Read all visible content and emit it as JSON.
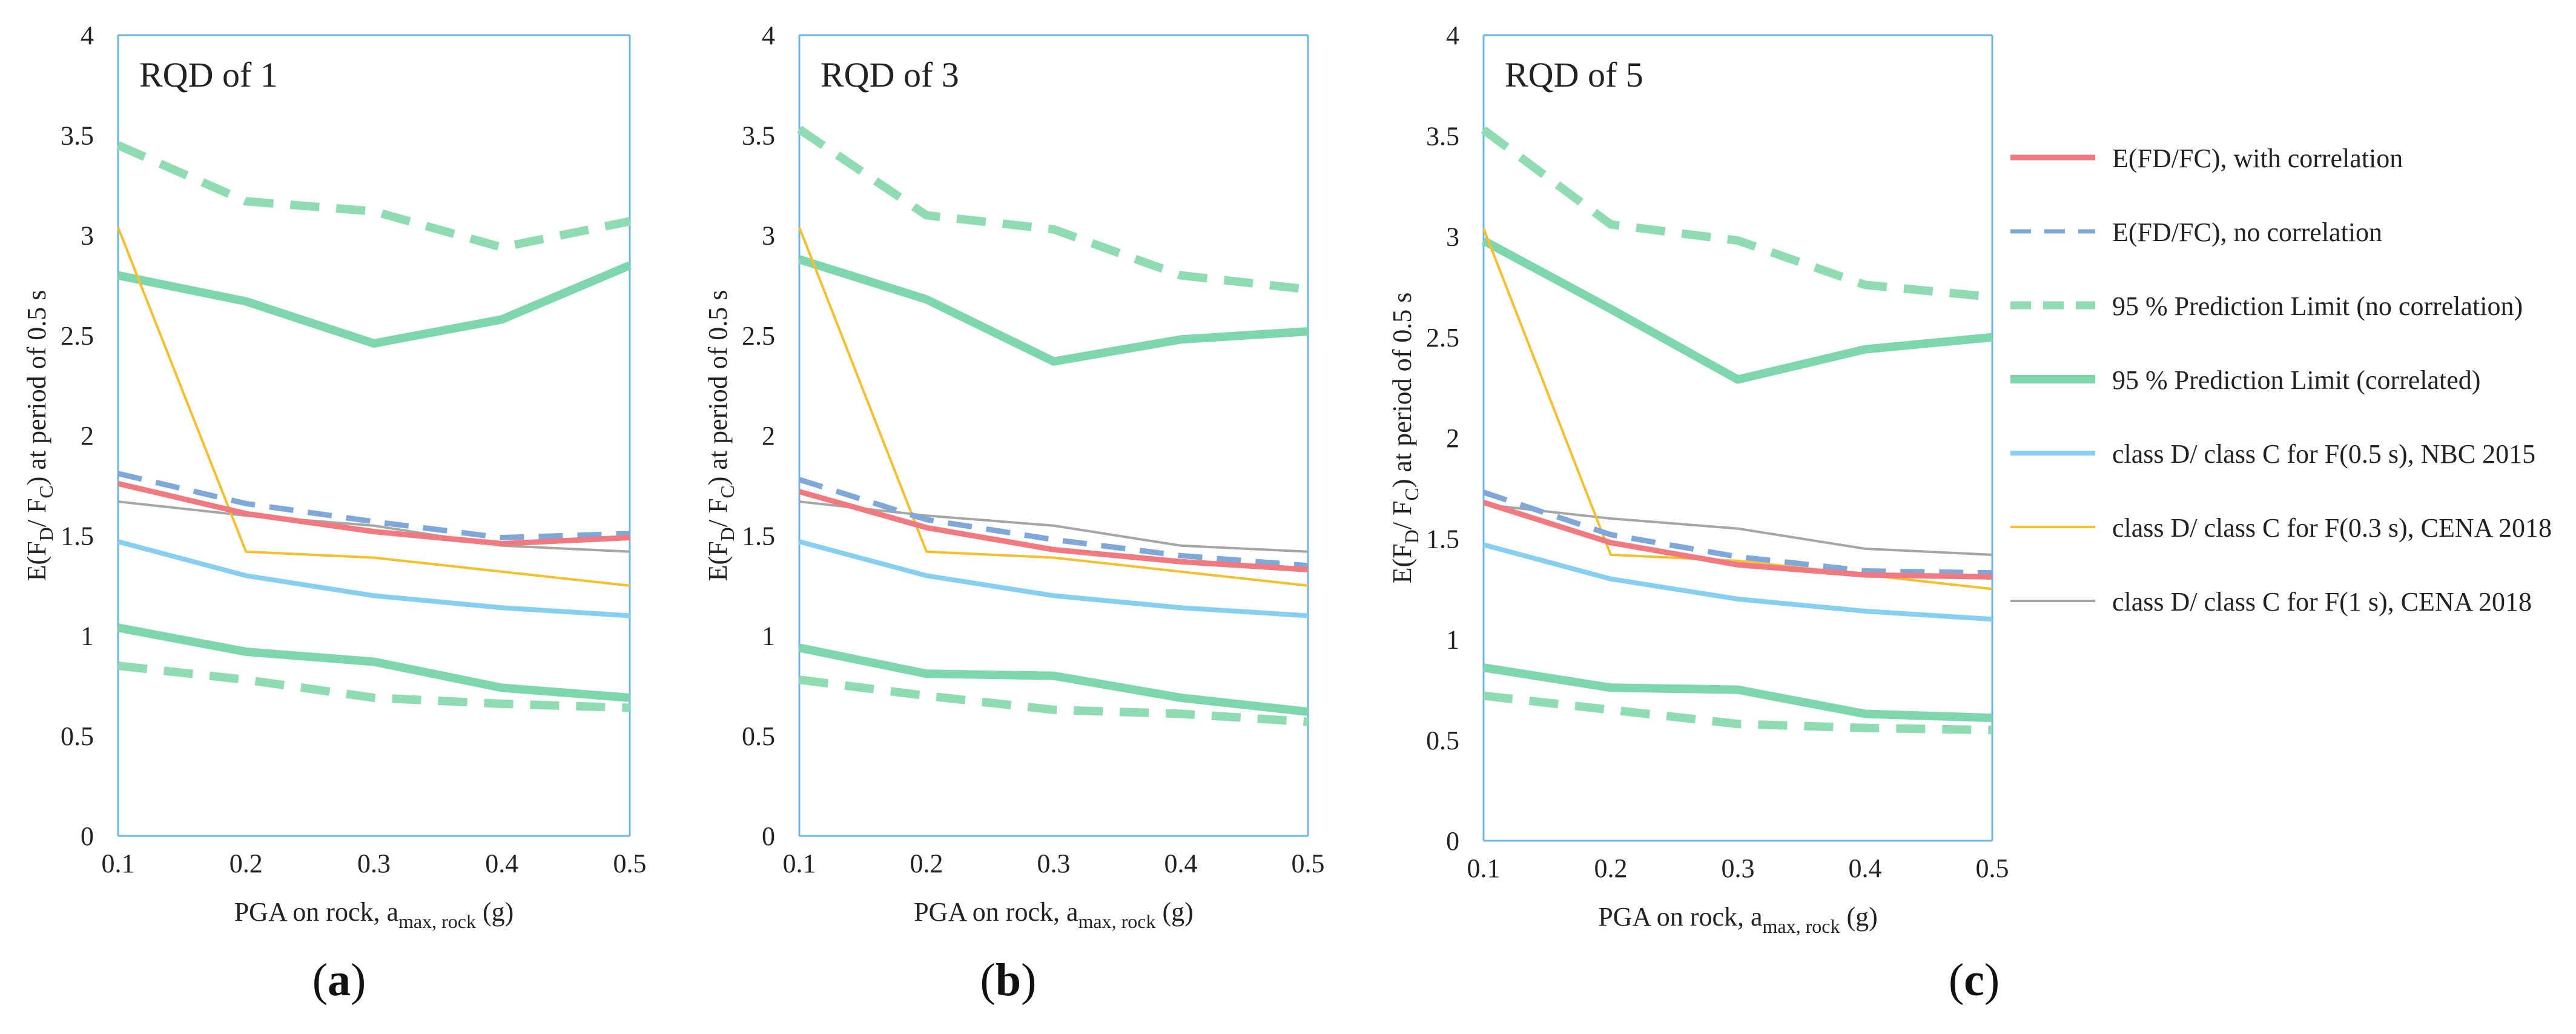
{
  "colors": {
    "e_corr": "#f07a80",
    "e_nocorr": "#7fa8d8",
    "pl_nocorr": "#8fdcb3",
    "pl_corr": "#7ed6ad",
    "nbc": "#86cff0",
    "cena03": "#f5bf2e",
    "cena1": "#a6a6a6",
    "axis": "#6fb6e0"
  },
  "legend": [
    {
      "key": "e_corr",
      "label": "E(FD/FC), with correlation"
    },
    {
      "key": "e_nocorr",
      "label": "E(FD/FC), no correlation"
    },
    {
      "key": "pl_nocorr",
      "label": "95 % Prediction Limit (no correlation)"
    },
    {
      "key": "pl_corr",
      "label": "95 % Prediction Limit (correlated)"
    },
    {
      "key": "nbc",
      "label": "class D/ class C for F(0.5 s), NBC 2015"
    },
    {
      "key": "cena03",
      "label": "class D/ class C for F(0.3 s), CENA 2018"
    },
    {
      "key": "cena1",
      "label": "class D/ class C for F(1 s), CENA 2018"
    }
  ],
  "panels": [
    {
      "caption_open": "(",
      "caption_letter": "a",
      "caption_close": ")"
    },
    {
      "caption_open": "(",
      "caption_letter": "b",
      "caption_close": ")"
    },
    {
      "caption_open": "(",
      "caption_letter": "c",
      "caption_close": ")"
    }
  ],
  "chart_data": [
    {
      "type": "line",
      "title": "RQD of 1",
      "xlabel": "PGA on rock, a",
      "xlabel_sub": "max, rock",
      "xlabel_unit": " (g)",
      "ylabel": "E(F",
      "ylabel_sub1": "D",
      "ylabel_mid": "/ F",
      "ylabel_sub2": "C",
      "ylabel_end": ") at period of 0.5 s",
      "x": [
        0.1,
        0.2,
        0.3,
        0.4,
        0.5
      ],
      "xticks": [
        "0.1",
        "0.2",
        "0.3",
        "0.4",
        "0.5"
      ],
      "yticks": [
        "0",
        "0.5",
        "1",
        "1.5",
        "2",
        "2.5",
        "3",
        "3.5",
        "4"
      ],
      "xlim": [
        0.1,
        0.5
      ],
      "ylim": [
        0,
        4
      ],
      "series": [
        {
          "key": "e_corr",
          "name": "E(FD/FC), with correlation",
          "values": [
            1.76,
            1.61,
            1.52,
            1.46,
            1.49
          ]
        },
        {
          "key": "e_nocorr",
          "name": "E(FD/FC), no correlation",
          "values": [
            1.81,
            1.66,
            1.57,
            1.49,
            1.51
          ]
        },
        {
          "key": "pl_nocorr",
          "name": "95 % Prediction Limit (no correlation) upper",
          "values": [
            3.45,
            3.17,
            3.12,
            2.94,
            3.07
          ]
        },
        {
          "key": "pl_nocorr",
          "name": "95 % Prediction Limit (no correlation) lower",
          "values": [
            0.85,
            0.78,
            0.69,
            0.66,
            0.64
          ]
        },
        {
          "key": "pl_corr",
          "name": "95 % Prediction Limit (correlated) upper",
          "values": [
            2.8,
            2.67,
            2.46,
            2.58,
            2.85
          ]
        },
        {
          "key": "pl_corr",
          "name": "95 % Prediction Limit (correlated) lower",
          "values": [
            1.04,
            0.92,
            0.87,
            0.74,
            0.69
          ]
        },
        {
          "key": "nbc",
          "name": "class D/ class C for F(0.5 s), NBC 2015",
          "values": [
            1.47,
            1.3,
            1.2,
            1.14,
            1.1
          ]
        },
        {
          "key": "cena03",
          "name": "class D/ class C for F(0.3 s), CENA 2018",
          "values": [
            3.04,
            1.42,
            1.39,
            1.32,
            1.25
          ]
        },
        {
          "key": "cena1",
          "name": "class D/ class C for F(1 s), CENA 2018",
          "values": [
            1.67,
            1.6,
            1.55,
            1.45,
            1.42
          ]
        }
      ]
    },
    {
      "type": "line",
      "title": "RQD of 3",
      "xlabel": "PGA on rock, a",
      "xlabel_sub": "max, rock",
      "xlabel_unit": " (g)",
      "ylabel": "E(F",
      "ylabel_sub1": "D",
      "ylabel_mid": "/ F",
      "ylabel_sub2": "C",
      "ylabel_end": ") at period of 0.5 s",
      "x": [
        0.1,
        0.2,
        0.3,
        0.4,
        0.5
      ],
      "xticks": [
        "0.1",
        "0.2",
        "0.3",
        "0.4",
        "0.5"
      ],
      "yticks": [
        "0",
        "0.5",
        "1",
        "1.5",
        "2",
        "2.5",
        "3",
        "3.5",
        "4"
      ],
      "xlim": [
        0.1,
        0.5
      ],
      "ylim": [
        0,
        4
      ],
      "series": [
        {
          "key": "e_corr",
          "name": "E(FD/FC), with correlation",
          "values": [
            1.72,
            1.54,
            1.43,
            1.37,
            1.33
          ]
        },
        {
          "key": "e_nocorr",
          "name": "E(FD/FC), no correlation",
          "values": [
            1.78,
            1.58,
            1.48,
            1.4,
            1.35
          ]
        },
        {
          "key": "pl_nocorr",
          "name": "95 % Prediction Limit (no correlation) upper",
          "values": [
            3.53,
            3.1,
            3.03,
            2.8,
            2.73
          ]
        },
        {
          "key": "pl_nocorr",
          "name": "95 % Prediction Limit (no correlation) lower",
          "values": [
            0.78,
            0.7,
            0.63,
            0.61,
            0.57
          ]
        },
        {
          "key": "pl_corr",
          "name": "95 % Prediction Limit (correlated) upper",
          "values": [
            2.88,
            2.68,
            2.37,
            2.48,
            2.52
          ]
        },
        {
          "key": "pl_corr",
          "name": "95 % Prediction Limit (correlated) lower",
          "values": [
            0.94,
            0.81,
            0.8,
            0.69,
            0.62
          ]
        },
        {
          "key": "nbc",
          "name": "class D/ class C for F(0.5 s), NBC 2015",
          "values": [
            1.47,
            1.3,
            1.2,
            1.14,
            1.1
          ]
        },
        {
          "key": "cena03",
          "name": "class D/ class C for F(0.3 s), CENA 2018",
          "values": [
            3.04,
            1.42,
            1.39,
            1.32,
            1.25
          ]
        },
        {
          "key": "cena1",
          "name": "class D/ class C for F(1 s), CENA 2018",
          "values": [
            1.67,
            1.6,
            1.55,
            1.45,
            1.42
          ]
        }
      ]
    },
    {
      "type": "line",
      "title": "RQD of 5",
      "xlabel": "PGA on rock, a",
      "xlabel_sub": "max, rock",
      "xlabel_unit": " (g)",
      "ylabel": "E(F",
      "ylabel_sub1": "D",
      "ylabel_mid": "/ F",
      "ylabel_sub2": "C",
      "ylabel_end": ") at period of 0.5 s",
      "x": [
        0.1,
        0.2,
        0.3,
        0.4,
        0.5
      ],
      "xticks": [
        "0.1",
        "0.2",
        "0.3",
        "0.4",
        "0.5"
      ],
      "yticks": [
        "0",
        "0.5",
        "1",
        "1.5",
        "2",
        "2.5",
        "3",
        "3.5",
        "4"
      ],
      "xlim": [
        0.1,
        0.5
      ],
      "ylim": [
        0,
        4
      ],
      "series": [
        {
          "key": "e_corr",
          "name": "E(FD/FC), with correlation",
          "values": [
            1.68,
            1.48,
            1.37,
            1.32,
            1.31
          ]
        },
        {
          "key": "e_nocorr",
          "name": "E(FD/FC), no correlation",
          "values": [
            1.73,
            1.52,
            1.41,
            1.34,
            1.33
          ]
        },
        {
          "key": "pl_nocorr",
          "name": "95 % Prediction Limit (no correlation) upper",
          "values": [
            3.53,
            3.06,
            2.98,
            2.76,
            2.7
          ]
        },
        {
          "key": "pl_nocorr",
          "name": "95 % Prediction Limit (no correlation) lower",
          "values": [
            0.72,
            0.65,
            0.58,
            0.56,
            0.55
          ]
        },
        {
          "key": "pl_corr",
          "name": "95 % Prediction Limit (correlated) upper",
          "values": [
            2.98,
            2.64,
            2.29,
            2.44,
            2.5
          ]
        },
        {
          "key": "pl_corr",
          "name": "95 % Prediction Limit (correlated) lower",
          "values": [
            0.86,
            0.76,
            0.75,
            0.63,
            0.61
          ]
        },
        {
          "key": "nbc",
          "name": "class D/ class C for F(0.5 s), NBC 2015",
          "values": [
            1.47,
            1.3,
            1.2,
            1.14,
            1.1
          ]
        },
        {
          "key": "cena03",
          "name": "class D/ class C for F(0.3 s), CENA 2018",
          "values": [
            3.04,
            1.42,
            1.39,
            1.32,
            1.25
          ]
        },
        {
          "key": "cena1",
          "name": "class D/ class C for F(1 s), CENA 2018",
          "values": [
            1.67,
            1.6,
            1.55,
            1.45,
            1.42
          ]
        }
      ]
    }
  ]
}
